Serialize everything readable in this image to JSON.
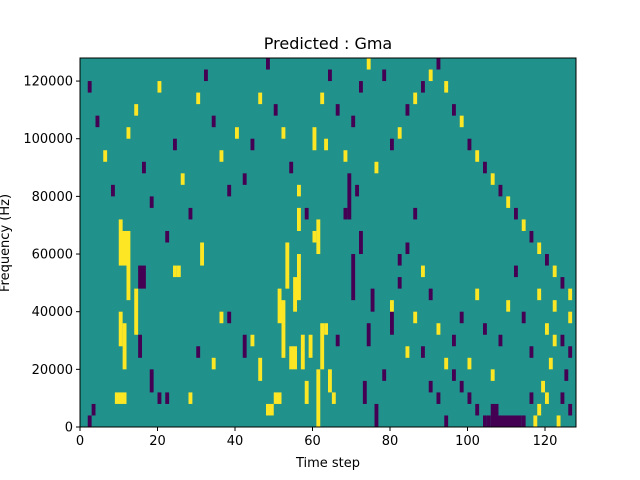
{
  "chart_data": {
    "type": "heatmap",
    "title": "Predicted : Gma",
    "xlabel": "Time step",
    "ylabel": "Frequency (Hz)",
    "xlim": [
      0,
      128
    ],
    "ylim": [
      0,
      128000
    ],
    "x_ticks": [
      0,
      20,
      40,
      60,
      80,
      100,
      120
    ],
    "y_ticks": [
      0,
      20000,
      40000,
      60000,
      80000,
      100000,
      120000
    ],
    "x_tick_labels": [
      "0",
      "20",
      "40",
      "60",
      "80",
      "100",
      "120"
    ],
    "y_tick_labels": [
      "0",
      "20000",
      "40000",
      "60000",
      "80000",
      "100000",
      "120000"
    ],
    "grid": false,
    "colormap": "viridis",
    "color_levels": {
      "low": "#440154",
      "mid": "#21918c",
      "high": "#fde725"
    },
    "background_level": "mid",
    "note_units": "cells are [time_start, time_end, freq_start_Hz, freq_end_Hz, level]",
    "cells": [
      [
        2,
        3,
        0,
        4000,
        "low"
      ],
      [
        3,
        4,
        4000,
        8000,
        "low"
      ],
      [
        9,
        12,
        8000,
        12000,
        "high"
      ],
      [
        10,
        11,
        28000,
        40000,
        "high"
      ],
      [
        11,
        12,
        20000,
        36000,
        "high"
      ],
      [
        12,
        13,
        44000,
        68000,
        "high"
      ],
      [
        14,
        15,
        32000,
        48000,
        "high"
      ],
      [
        10,
        12,
        56000,
        68000,
        "high"
      ],
      [
        15,
        16,
        48000,
        56000,
        "low"
      ],
      [
        16,
        17,
        48000,
        56000,
        "low"
      ],
      [
        15,
        16,
        24000,
        32000,
        "low"
      ],
      [
        18,
        19,
        12000,
        20000,
        "low"
      ],
      [
        20,
        21,
        8000,
        12000,
        "low"
      ],
      [
        22,
        23,
        8000,
        12000,
        "low"
      ],
      [
        24,
        25,
        52000,
        56000,
        "high"
      ],
      [
        25,
        26,
        52000,
        56000,
        "high"
      ],
      [
        28,
        29,
        8000,
        12000,
        "high"
      ],
      [
        30,
        31,
        24000,
        28000,
        "low"
      ],
      [
        31,
        32,
        56000,
        64000,
        "high"
      ],
      [
        34,
        35,
        20000,
        24000,
        "high"
      ],
      [
        36,
        37,
        36000,
        40000,
        "high"
      ],
      [
        38,
        39,
        36000,
        40000,
        "low"
      ],
      [
        42,
        43,
        24000,
        32000,
        "low"
      ],
      [
        44,
        45,
        28000,
        32000,
        "high"
      ],
      [
        46,
        47,
        16000,
        24000,
        "high"
      ],
      [
        48,
        50,
        4000,
        8000,
        "high"
      ],
      [
        50,
        52,
        8000,
        12000,
        "high"
      ],
      [
        51,
        52,
        36000,
        48000,
        "high"
      ],
      [
        52,
        53,
        24000,
        44000,
        "high"
      ],
      [
        53,
        54,
        48000,
        64000,
        "high"
      ],
      [
        54,
        56,
        20000,
        28000,
        "high"
      ],
      [
        55,
        56,
        40000,
        52000,
        "high"
      ],
      [
        56,
        57,
        44000,
        60000,
        "high"
      ],
      [
        56,
        57,
        68000,
        76000,
        "high"
      ],
      [
        57,
        58,
        20000,
        32000,
        "high"
      ],
      [
        58,
        59,
        8000,
        16000,
        "high"
      ],
      [
        59,
        60,
        24000,
        32000,
        "high"
      ],
      [
        60,
        61,
        96000,
        104000,
        "high"
      ],
      [
        61,
        62,
        60000,
        72000,
        "high"
      ],
      [
        61,
        62,
        0,
        20000,
        "high"
      ],
      [
        62,
        63,
        20000,
        36000,
        "high"
      ],
      [
        63,
        64,
        96000,
        100000,
        "high"
      ],
      [
        63,
        64,
        32000,
        36000,
        "high"
      ],
      [
        64,
        65,
        12000,
        20000,
        "high"
      ],
      [
        65,
        66,
        8000,
        12000,
        "high"
      ],
      [
        66,
        67,
        28000,
        32000,
        "low"
      ],
      [
        68,
        69,
        72000,
        76000,
        "low"
      ],
      [
        69,
        70,
        72000,
        88000,
        "low"
      ],
      [
        70,
        71,
        44000,
        60000,
        "low"
      ],
      [
        71,
        72,
        80000,
        84000,
        "low"
      ],
      [
        72,
        73,
        60000,
        68000,
        "low"
      ],
      [
        73,
        74,
        8000,
        16000,
        "low"
      ],
      [
        74,
        75,
        28000,
        36000,
        "low"
      ],
      [
        75,
        76,
        40000,
        48000,
        "low"
      ],
      [
        76,
        77,
        0,
        8000,
        "low"
      ],
      [
        78,
        79,
        16000,
        20000,
        "low"
      ],
      [
        80,
        81,
        32000,
        40000,
        "low"
      ],
      [
        82,
        83,
        48000,
        52000,
        "low"
      ],
      [
        84,
        85,
        60000,
        64000,
        "low"
      ],
      [
        86,
        87,
        72000,
        76000,
        "low"
      ],
      [
        88,
        89,
        24000,
        28000,
        "low"
      ],
      [
        90,
        91,
        12000,
        16000,
        "low"
      ],
      [
        92,
        93,
        8000,
        12000,
        "low"
      ],
      [
        94,
        95,
        0,
        4000,
        "low"
      ],
      [
        96,
        97,
        16000,
        20000,
        "low"
      ],
      [
        98,
        99,
        12000,
        16000,
        "low"
      ],
      [
        100,
        101,
        8000,
        12000,
        "low"
      ],
      [
        102,
        103,
        4000,
        8000,
        "low"
      ],
      [
        104,
        105,
        0,
        4000,
        "low"
      ],
      [
        105,
        106,
        0,
        4000,
        "low"
      ],
      [
        106,
        108,
        0,
        8000,
        "low"
      ],
      [
        108,
        114,
        0,
        4000,
        "low"
      ],
      [
        114,
        115,
        0,
        4000,
        "low"
      ],
      [
        116,
        117,
        8000,
        12000,
        "low"
      ],
      [
        117,
        118,
        0,
        4000,
        "high"
      ],
      [
        118,
        119,
        4000,
        8000,
        "high"
      ],
      [
        119,
        120,
        12000,
        16000,
        "high"
      ],
      [
        120,
        121,
        8000,
        12000,
        "high"
      ],
      [
        121,
        122,
        20000,
        24000,
        "high"
      ],
      [
        122,
        123,
        28000,
        32000,
        "high"
      ],
      [
        123,
        124,
        0,
        4000,
        "high"
      ],
      [
        124,
        125,
        8000,
        12000,
        "low"
      ],
      [
        125,
        126,
        16000,
        20000,
        "low"
      ],
      [
        126,
        127,
        24000,
        28000,
        "low"
      ],
      [
        126,
        127,
        4000,
        8000,
        "low"
      ],
      [
        80,
        81,
        96000,
        100000,
        "low"
      ],
      [
        82,
        83,
        100000,
        104000,
        "high"
      ],
      [
        84,
        85,
        108000,
        112000,
        "low"
      ],
      [
        86,
        87,
        112000,
        116000,
        "high"
      ],
      [
        88,
        89,
        116000,
        120000,
        "low"
      ],
      [
        90,
        91,
        120000,
        124000,
        "high"
      ],
      [
        92,
        93,
        124000,
        128000,
        "low"
      ],
      [
        94,
        95,
        116000,
        120000,
        "high"
      ],
      [
        96,
        97,
        108000,
        112000,
        "low"
      ],
      [
        98,
        99,
        104000,
        108000,
        "high"
      ],
      [
        100,
        101,
        96000,
        100000,
        "low"
      ],
      [
        102,
        103,
        92000,
        96000,
        "high"
      ],
      [
        104,
        105,
        88000,
        92000,
        "low"
      ],
      [
        106,
        107,
        84000,
        88000,
        "high"
      ],
      [
        108,
        109,
        80000,
        84000,
        "low"
      ],
      [
        110,
        111,
        76000,
        80000,
        "high"
      ],
      [
        112,
        113,
        72000,
        76000,
        "low"
      ],
      [
        114,
        115,
        68000,
        72000,
        "high"
      ],
      [
        116,
        117,
        64000,
        68000,
        "low"
      ],
      [
        118,
        119,
        60000,
        64000,
        "high"
      ],
      [
        120,
        121,
        56000,
        60000,
        "low"
      ],
      [
        122,
        123,
        52000,
        56000,
        "high"
      ],
      [
        124,
        125,
        48000,
        52000,
        "low"
      ],
      [
        126,
        127,
        44000,
        48000,
        "high"
      ],
      [
        2,
        3,
        116000,
        120000,
        "low"
      ],
      [
        4,
        5,
        104000,
        108000,
        "low"
      ],
      [
        6,
        7,
        92000,
        96000,
        "high"
      ],
      [
        8,
        9,
        80000,
        84000,
        "low"
      ],
      [
        10,
        11,
        68000,
        72000,
        "high"
      ],
      [
        12,
        13,
        100000,
        104000,
        "high"
      ],
      [
        14,
        15,
        108000,
        112000,
        "high"
      ],
      [
        16,
        17,
        88000,
        92000,
        "low"
      ],
      [
        18,
        19,
        76000,
        80000,
        "low"
      ],
      [
        20,
        21,
        116000,
        120000,
        "high"
      ],
      [
        22,
        23,
        64000,
        68000,
        "low"
      ],
      [
        24,
        25,
        96000,
        100000,
        "low"
      ],
      [
        26,
        27,
        84000,
        88000,
        "high"
      ],
      [
        28,
        29,
        72000,
        76000,
        "low"
      ],
      [
        30,
        31,
        112000,
        116000,
        "high"
      ],
      [
        32,
        33,
        120000,
        124000,
        "low"
      ],
      [
        34,
        35,
        104000,
        108000,
        "low"
      ],
      [
        36,
        37,
        92000,
        96000,
        "high"
      ],
      [
        38,
        39,
        80000,
        84000,
        "low"
      ],
      [
        40,
        41,
        100000,
        104000,
        "high"
      ],
      [
        42,
        43,
        84000,
        88000,
        "low"
      ],
      [
        44,
        45,
        96000,
        100000,
        "low"
      ],
      [
        46,
        47,
        112000,
        116000,
        "high"
      ],
      [
        48,
        49,
        124000,
        128000,
        "low"
      ],
      [
        50,
        51,
        108000,
        112000,
        "low"
      ],
      [
        52,
        53,
        100000,
        104000,
        "high"
      ],
      [
        54,
        55,
        88000,
        92000,
        "low"
      ],
      [
        56,
        57,
        80000,
        84000,
        "high"
      ],
      [
        58,
        59,
        72000,
        76000,
        "low"
      ],
      [
        60,
        61,
        64000,
        68000,
        "high"
      ],
      [
        62,
        63,
        112000,
        116000,
        "high"
      ],
      [
        64,
        65,
        120000,
        124000,
        "low"
      ],
      [
        66,
        67,
        108000,
        112000,
        "low"
      ],
      [
        68,
        69,
        92000,
        96000,
        "high"
      ],
      [
        70,
        71,
        104000,
        108000,
        "low"
      ],
      [
        72,
        73,
        116000,
        120000,
        "low"
      ],
      [
        74,
        75,
        124000,
        128000,
        "high"
      ],
      [
        76,
        77,
        88000,
        92000,
        "high"
      ],
      [
        78,
        79,
        120000,
        124000,
        "low"
      ],
      [
        80,
        81,
        40000,
        44000,
        "high"
      ],
      [
        82,
        83,
        56000,
        60000,
        "low"
      ],
      [
        84,
        85,
        24000,
        28000,
        "high"
      ],
      [
        86,
        87,
        36000,
        40000,
        "high"
      ],
      [
        88,
        89,
        52000,
        56000,
        "high"
      ],
      [
        90,
        91,
        44000,
        48000,
        "low"
      ],
      [
        92,
        93,
        32000,
        36000,
        "high"
      ],
      [
        94,
        95,
        20000,
        24000,
        "high"
      ],
      [
        96,
        97,
        28000,
        32000,
        "low"
      ],
      [
        98,
        99,
        36000,
        40000,
        "low"
      ],
      [
        100,
        101,
        20000,
        24000,
        "high"
      ],
      [
        102,
        103,
        44000,
        48000,
        "high"
      ],
      [
        104,
        105,
        32000,
        36000,
        "low"
      ],
      [
        106,
        107,
        16000,
        20000,
        "high"
      ],
      [
        108,
        109,
        28000,
        32000,
        "low"
      ],
      [
        110,
        111,
        40000,
        44000,
        "high"
      ],
      [
        112,
        113,
        52000,
        56000,
        "low"
      ],
      [
        114,
        115,
        36000,
        40000,
        "low"
      ],
      [
        116,
        117,
        24000,
        28000,
        "low"
      ],
      [
        118,
        119,
        44000,
        48000,
        "high"
      ],
      [
        120,
        121,
        32000,
        36000,
        "high"
      ],
      [
        122,
        123,
        40000,
        44000,
        "high"
      ],
      [
        124,
        125,
        28000,
        32000,
        "low"
      ],
      [
        126,
        127,
        36000,
        40000,
        "high"
      ]
    ]
  }
}
